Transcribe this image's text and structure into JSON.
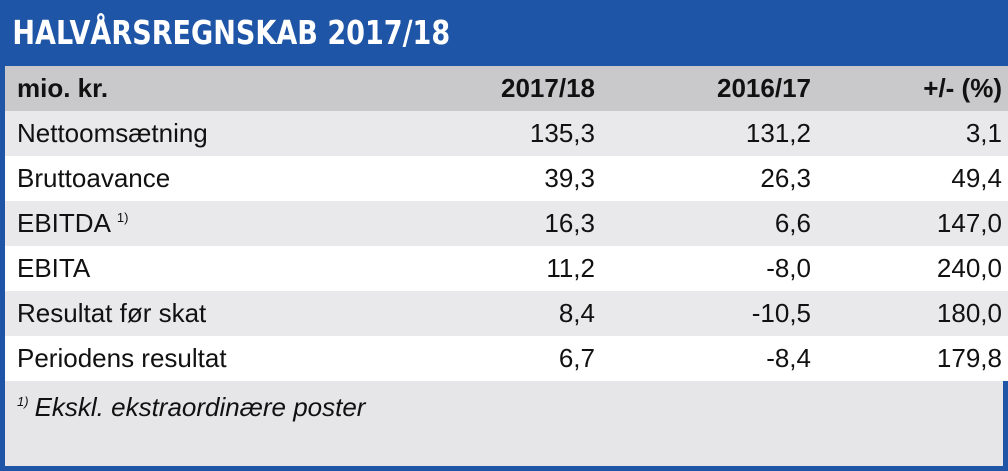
{
  "title": "HALVÅRSREGNSKAB 2017/18",
  "colors": {
    "header_blue": "#1f55a6",
    "header_row": "#c9c9cc",
    "row_alt": "#e9e9eb"
  },
  "table": {
    "headers": [
      "mio. kr.",
      "2017/18",
      "2016/17",
      "+/- (%)"
    ],
    "rows": [
      {
        "label": "Nettoomsætning",
        "sup": "",
        "v2017": "135,3",
        "v2016": "131,2",
        "change": "3,1"
      },
      {
        "label": "Bruttoavance",
        "sup": "",
        "v2017": "39,3",
        "v2016": "26,3",
        "change": "49,4"
      },
      {
        "label": "EBITDA",
        "sup": "1)",
        "v2017": "16,3",
        "v2016": "6,6",
        "change": "147,0"
      },
      {
        "label": "EBITA",
        "sup": "",
        "v2017": "11,2",
        "v2016": "-8,0",
        "change": "240,0"
      },
      {
        "label": "Resultat før skat",
        "sup": "",
        "v2017": "8,4",
        "v2016": "-10,5",
        "change": "180,0"
      },
      {
        "label": "Periodens resultat",
        "sup": "",
        "v2017": "6,7",
        "v2016": "-8,4",
        "change": "179,8"
      }
    ]
  },
  "footnote": {
    "marker": "1)",
    "text": "Ekskl. ekstraordinære poster"
  }
}
